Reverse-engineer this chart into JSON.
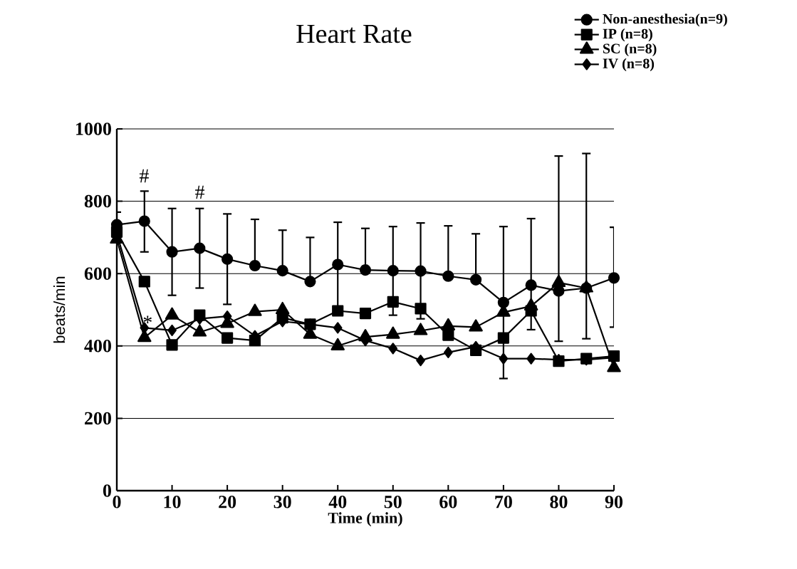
{
  "chart_data": {
    "type": "line",
    "title": "Heart Rate",
    "xlabel": "Time (min)",
    "ylabel": "beats/min",
    "x": [
      0,
      5,
      10,
      15,
      20,
      25,
      30,
      35,
      40,
      45,
      50,
      55,
      60,
      65,
      70,
      75,
      80,
      85,
      90
    ],
    "xlim": [
      0,
      90
    ],
    "xticks": [
      0,
      10,
      20,
      30,
      40,
      50,
      60,
      70,
      80,
      90
    ],
    "ylim": [
      0,
      1000
    ],
    "yticks": [
      0,
      200,
      400,
      600,
      800,
      1000
    ],
    "grid": "y",
    "legend": "top right",
    "line_style": "solid",
    "series": [
      {
        "name": "Non-anesthesia(n=9)",
        "color": "#000000",
        "marker": "circle",
        "values": [
          735,
          745,
          660,
          670,
          640,
          622,
          608,
          578,
          625,
          610,
          608,
          607,
          593,
          583,
          520,
          568,
          552,
          560,
          588
        ],
        "errors": [
          [
            735,
            770
          ],
          [
            660,
            828
          ],
          [
            540,
            780
          ],
          [
            560,
            780
          ],
          [
            515,
            765
          ],
          [
            622,
            750
          ],
          [
            608,
            720
          ],
          [
            578,
            700
          ],
          [
            508,
            742
          ],
          [
            610,
            725
          ],
          [
            485,
            730
          ],
          [
            475,
            740
          ],
          [
            593,
            732
          ],
          [
            583,
            710
          ],
          [
            310,
            730
          ],
          [
            445,
            752
          ],
          [
            413,
            925
          ],
          [
            420,
            932
          ],
          [
            452,
            728
          ]
        ]
      },
      {
        "name": "IP (n=8)",
        "color": "#000000",
        "marker": "square",
        "values": [
          715,
          578,
          403,
          485,
          422,
          415,
          478,
          460,
          497,
          490,
          522,
          503,
          430,
          388,
          422,
          497,
          358,
          365,
          372
        ]
      },
      {
        "name": "SC (n=8)",
        "color": "#000000",
        "marker": "triangle",
        "values": [
          695,
          423,
          485,
          438,
          462,
          495,
          500,
          432,
          400,
          425,
          432,
          442,
          455,
          452,
          493,
          510,
          575,
          560,
          340
        ]
      },
      {
        "name": "IV (n=8)",
        "color": "#000000",
        "marker": "diamond",
        "values": [
          710,
          450,
          443,
          475,
          482,
          428,
          468,
          460,
          450,
          415,
          393,
          360,
          382,
          398,
          365,
          365,
          362,
          362,
          368
        ]
      }
    ],
    "annotations": [
      "#",
      "#",
      "*"
    ]
  }
}
